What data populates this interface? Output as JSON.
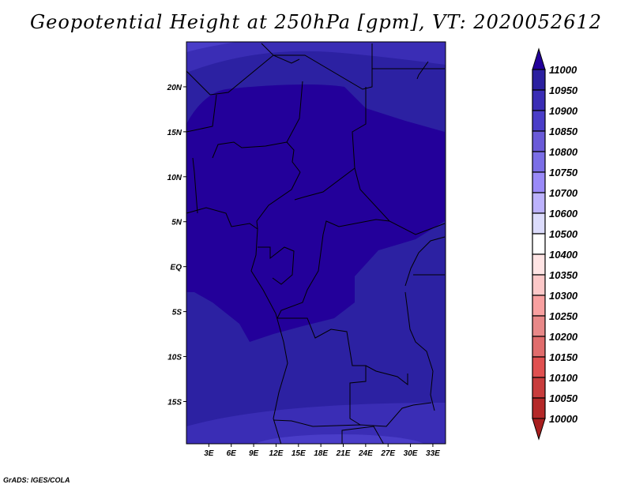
{
  "title": "Geopotential Height at 250hPa [gpm], VT: 2020052612",
  "credit": "GrADS: IGES/COLA",
  "map": {
    "lon_range": [
      0,
      34.7
    ],
    "lat_range": [
      -19.7,
      25
    ],
    "lat_ticks": [
      {
        "value": 20,
        "label": "20N"
      },
      {
        "value": 15,
        "label": "15N"
      },
      {
        "value": 10,
        "label": "10N"
      },
      {
        "value": 5,
        "label": "5N"
      },
      {
        "value": 0,
        "label": "EQ"
      },
      {
        "value": -5,
        "label": "5S"
      },
      {
        "value": -10,
        "label": "10S"
      },
      {
        "value": -15,
        "label": "15S"
      }
    ],
    "lon_ticks": [
      {
        "value": 3,
        "label": "3E"
      },
      {
        "value": 6,
        "label": "6E"
      },
      {
        "value": 9,
        "label": "9E"
      },
      {
        "value": 12,
        "label": "12E"
      },
      {
        "value": 15,
        "label": "15E"
      },
      {
        "value": 18,
        "label": "18E"
      },
      {
        "value": 21,
        "label": "21E"
      },
      {
        "value": 24,
        "label": "24E"
      },
      {
        "value": 27,
        "label": "27E"
      },
      {
        "value": 30,
        "label": "30E"
      },
      {
        "value": 33,
        "label": "33E"
      }
    ]
  },
  "colorbar": {
    "over_color": "#22009a",
    "under_color": "#a81e1e",
    "labels": [
      "11000",
      "10950",
      "10900",
      "10850",
      "10800",
      "10750",
      "10700",
      "10600",
      "10500",
      "10400",
      "10350",
      "10300",
      "10250",
      "10200",
      "10150",
      "10100",
      "10050",
      "10000"
    ],
    "colors": [
      "#2b20a0",
      "#3a2db5",
      "#4a3dc8",
      "#6a5ad8",
      "#7b6ee6",
      "#9a8af8",
      "#bcb2fc",
      "#dcdcfc",
      "#ffffff",
      "#ffe4e4",
      "#fcc8c8",
      "#f8a0a0",
      "#e88888",
      "#e06c6c",
      "#e05050",
      "#c83c3c",
      "#b42828"
    ]
  }
}
